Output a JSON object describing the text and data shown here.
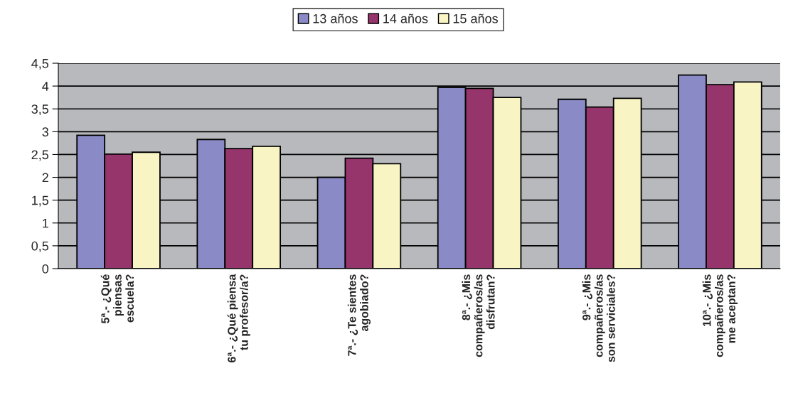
{
  "chart_data": {
    "type": "bar",
    "categories": [
      "5ª.- ¿Qué\npiensas\nescuela?",
      "6ª.- ¿Qué piensa\ntu profesor/a?",
      "7ª.- ¿Te sientes\nagobiado?",
      "8ª.- ¿Mis\ncompañeros/as\ndisfrutan?",
      "9ª.- ¿Mis\ncompañeros/as\nson serviciales?",
      "10ª.- ¿Mis\ncompañeros/as\nme aceptan?"
    ],
    "series": [
      {
        "name": "13 años",
        "color": "#8a8ac6",
        "values": [
          2.92,
          2.83,
          2.0,
          3.97,
          3.71,
          4.24
        ]
      },
      {
        "name": "14 años",
        "color": "#96346c",
        "values": [
          2.51,
          2.63,
          2.42,
          3.95,
          3.54,
          4.03
        ]
      },
      {
        "name": "15 años",
        "color": "#f8f4c4",
        "values": [
          2.55,
          2.68,
          2.3,
          3.75,
          3.73,
          4.09
        ]
      }
    ],
    "ylim": [
      0,
      4.5
    ],
    "yticks": [
      0,
      {
        "value": 0.5,
        "label": "0,5"
      },
      1,
      {
        "value": 1.5,
        "label": "1,5"
      },
      2,
      {
        "value": 2.5,
        "label": "2,5"
      },
      3,
      {
        "value": 3.5,
        "label": "3,5"
      },
      4,
      {
        "value": 4.5,
        "label": "4,5"
      }
    ],
    "grid": "y",
    "legend": "top"
  }
}
